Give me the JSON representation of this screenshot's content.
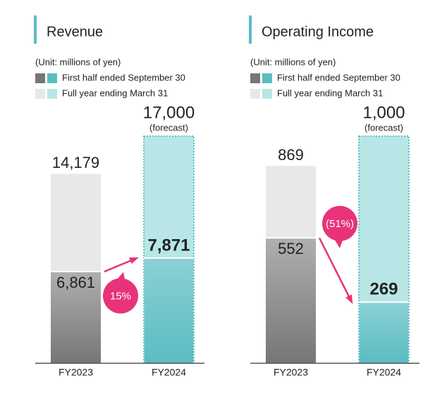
{
  "chart_data": [
    {
      "type": "bar",
      "title": "Revenue",
      "unit": "(Unit: millions of yen)",
      "categories": [
        "FY2023",
        "FY2024"
      ],
      "series": [
        {
          "name": "First half ended September 30",
          "colors": [
            "#767676",
            "#5bbcc3"
          ],
          "values": [
            6861,
            7871
          ],
          "value_labels": [
            "6,861",
            "7,871"
          ]
        },
        {
          "name": "Full year ending March 31",
          "colors": [
            "#e8e8e8",
            "#b8e6e6"
          ],
          "values": [
            14179,
            17000
          ],
          "value_labels": [
            "14,179",
            "17,000"
          ]
        }
      ],
      "annotations": {
        "forecast": "(forecast)",
        "change": "15%"
      }
    },
    {
      "type": "bar",
      "title": "Operating Income",
      "unit": "(Unit: millions of yen)",
      "categories": [
        "FY2023",
        "FY2024"
      ],
      "series": [
        {
          "name": "First half ended September 30",
          "colors": [
            "#767676",
            "#5bbcc3"
          ],
          "values": [
            552,
            269
          ],
          "value_labels": [
            "552",
            "269"
          ]
        },
        {
          "name": "Full year ending March 31",
          "colors": [
            "#e8e8e8",
            "#b8e6e6"
          ],
          "values": [
            869,
            1000
          ],
          "value_labels": [
            "869",
            "1,000"
          ]
        }
      ],
      "annotations": {
        "forecast": "(forecast)",
        "change": "(51%)"
      }
    }
  ]
}
